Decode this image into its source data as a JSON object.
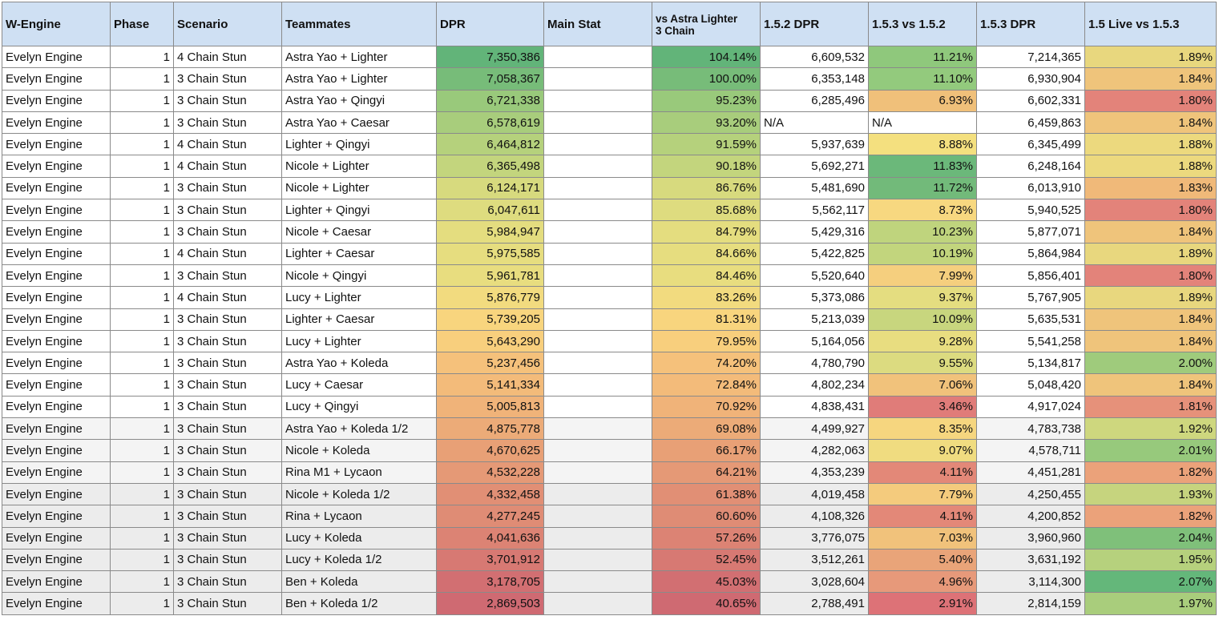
{
  "headers": {
    "wengine": "W-Engine",
    "phase": "Phase",
    "scenario": "Scenario",
    "teammates": "Teammates",
    "dpr": "DPR",
    "main_stat": "Main Stat",
    "vs_astra_line1": "vs Astra Lighter",
    "vs_astra_line2": "3 Chain",
    "dpr_152": "1.5.2 DPR",
    "v153_vs_152": "1.5.3 vs 1.5.2",
    "dpr_153": "1.5.3 DPR",
    "live_vs_153": "1.5 Live vs 1.5.3"
  },
  "rows": [
    {
      "wengine": "Evelyn  Engine",
      "phase": "1",
      "scenario": "4 Chain Stun",
      "teammates": "Astra Yao + Lighter",
      "dpr": "7,350,386",
      "main_stat": "",
      "vs_astra": "104.14%",
      "dpr_152": "6,609,532",
      "v153_vs_152": "11.21%",
      "dpr_153": "7,214,365",
      "live_vs_153": "1.89%",
      "c_dpr": "#62b479",
      "c_vs": "#62b479",
      "c_153": "#8fc87c",
      "c_live": "#e8d77e"
    },
    {
      "wengine": "Evelyn  Engine",
      "phase": "1",
      "scenario": "3 Chain Stun",
      "teammates": "Astra Yao + Lighter",
      "dpr": "7,058,367",
      "main_stat": "",
      "vs_astra": "100.00%",
      "dpr_152": "6,353,148",
      "v153_vs_152": "11.10%",
      "dpr_153": "6,930,904",
      "live_vs_153": "1.84%",
      "c_dpr": "#77bc79",
      "c_vs": "#77bc79",
      "c_153": "#93ca7d",
      "c_live": "#efc47b"
    },
    {
      "wengine": "Evelyn  Engine",
      "phase": "1",
      "scenario": "3 Chain Stun",
      "teammates": "Astra Yao + Qingyi",
      "dpr": "6,721,338",
      "main_stat": "",
      "vs_astra": "95.23%",
      "dpr_152": "6,285,496",
      "v153_vs_152": "6.93%",
      "dpr_153": "6,602,331",
      "live_vs_153": "1.80%",
      "c_dpr": "#99c97b",
      "c_vs": "#99c97b",
      "c_153": "#f0c07a",
      "c_live": "#e3837a"
    },
    {
      "wengine": "Evelyn  Engine",
      "phase": "1",
      "scenario": "3 Chain Stun",
      "teammates": "Astra Yao + Caesar",
      "dpr": "6,578,619",
      "main_stat": "",
      "vs_astra": "93.20%",
      "dpr_152": "N/A",
      "v153_vs_152": "N/A",
      "dpr_153": "6,459,863",
      "live_vs_153": "1.84%",
      "c_dpr": "#a8cd7c",
      "c_vs": "#a8cd7c",
      "c_153": "#ffffff",
      "c_live": "#efc47b"
    },
    {
      "wengine": "Evelyn  Engine",
      "phase": "1",
      "scenario": "4 Chain Stun",
      "teammates": "Lighter + Qingyi",
      "dpr": "6,464,812",
      "main_stat": "",
      "vs_astra": "91.59%",
      "dpr_152": "5,937,639",
      "v153_vs_152": "8.88%",
      "dpr_153": "6,345,499",
      "live_vs_153": "1.88%",
      "c_dpr": "#b5d17c",
      "c_vs": "#b5d17c",
      "c_153": "#f4e07f",
      "c_live": "#ecd97e"
    },
    {
      "wengine": "Evelyn  Engine",
      "phase": "1",
      "scenario": "4 Chain Stun",
      "teammates": "Nicole + Lighter",
      "dpr": "6,365,498",
      "main_stat": "",
      "vs_astra": "90.18%",
      "dpr_152": "5,692,271",
      "v153_vs_152": "11.83%",
      "dpr_153": "6,248,164",
      "live_vs_153": "1.88%",
      "c_dpr": "#c3d57d",
      "c_vs": "#c3d57d",
      "c_153": "#6bb87a",
      "c_live": "#ecd97e"
    },
    {
      "wengine": "Evelyn  Engine",
      "phase": "1",
      "scenario": "3 Chain Stun",
      "teammates": "Nicole + Lighter",
      "dpr": "6,124,171",
      "main_stat": "",
      "vs_astra": "86.76%",
      "dpr_152": "5,481,690",
      "v153_vs_152": "11.72%",
      "dpr_153": "6,013,910",
      "live_vs_153": "1.83%",
      "c_dpr": "#d7da7e",
      "c_vs": "#d7da7e",
      "c_153": "#72ba7a",
      "c_live": "#f0b979"
    },
    {
      "wengine": "Evelyn  Engine",
      "phase": "1",
      "scenario": "3 Chain Stun",
      "teammates": "Lighter + Qingyi",
      "dpr": "6,047,611",
      "main_stat": "",
      "vs_astra": "85.68%",
      "dpr_152": "5,562,117",
      "v153_vs_152": "8.73%",
      "dpr_153": "5,940,525",
      "live_vs_153": "1.80%",
      "c_dpr": "#dedc7f",
      "c_vs": "#dedc7f",
      "c_153": "#f7d880",
      "c_live": "#e3837a"
    },
    {
      "wengine": "Evelyn  Engine",
      "phase": "1",
      "scenario": "3 Chain Stun",
      "teammates": "Nicole + Caesar",
      "dpr": "5,984,947",
      "main_stat": "",
      "vs_astra": "84.79%",
      "dpr_152": "5,429,316",
      "v153_vs_152": "10.23%",
      "dpr_153": "5,877,071",
      "live_vs_153": "1.84%",
      "c_dpr": "#e4dd7f",
      "c_vs": "#e4dd7f",
      "c_153": "#bfd47d",
      "c_live": "#efc47b"
    },
    {
      "wengine": "Evelyn  Engine",
      "phase": "1",
      "scenario": "4 Chain Stun",
      "teammates": "Lighter + Caesar",
      "dpr": "5,975,585",
      "main_stat": "",
      "vs_astra": "84.66%",
      "dpr_152": "5,422,825",
      "v153_vs_152": "10.19%",
      "dpr_153": "5,864,984",
      "live_vs_153": "1.89%",
      "c_dpr": "#e6dd7f",
      "c_vs": "#e6dd7f",
      "c_153": "#c2d57d",
      "c_live": "#e8d77e"
    },
    {
      "wengine": "Evelyn  Engine",
      "phase": "1",
      "scenario": "3 Chain Stun",
      "teammates": "Nicole + Qingyi",
      "dpr": "5,961,781",
      "main_stat": "",
      "vs_astra": "84.46%",
      "dpr_152": "5,520,640",
      "v153_vs_152": "7.99%",
      "dpr_153": "5,856,401",
      "live_vs_153": "1.80%",
      "c_dpr": "#e8dd7f",
      "c_vs": "#e8dd7f",
      "c_153": "#f5cf7e",
      "c_live": "#e3837a"
    },
    {
      "wengine": "Evelyn  Engine",
      "phase": "1",
      "scenario": "4 Chain Stun",
      "teammates": "Lucy + Lighter",
      "dpr": "5,876,779",
      "main_stat": "",
      "vs_astra": "83.26%",
      "dpr_152": "5,373,086",
      "v153_vs_152": "9.37%",
      "dpr_153": "5,767,905",
      "live_vs_153": "1.89%",
      "c_dpr": "#f2db7f",
      "c_vs": "#f2db7f",
      "c_153": "#e4dd80",
      "c_live": "#e8d77e"
    },
    {
      "wengine": "Evelyn  Engine",
      "phase": "1",
      "scenario": "3 Chain Stun",
      "teammates": "Lighter + Caesar",
      "dpr": "5,739,205",
      "main_stat": "",
      "vs_astra": "81.31%",
      "dpr_152": "5,213,039",
      "v153_vs_152": "10.09%",
      "dpr_153": "5,635,531",
      "live_vs_153": "1.84%",
      "c_dpr": "#f8d57e",
      "c_vs": "#f8d57e",
      "c_153": "#c8d67e",
      "c_live": "#efc47b"
    },
    {
      "wengine": "Evelyn  Engine",
      "phase": "1",
      "scenario": "3 Chain Stun",
      "teammates": "Lucy + Lighter",
      "dpr": "5,643,290",
      "main_stat": "",
      "vs_astra": "79.95%",
      "dpr_152": "5,164,056",
      "v153_vs_152": "9.28%",
      "dpr_153": "5,541,258",
      "live_vs_153": "1.84%",
      "c_dpr": "#f8cf7d",
      "c_vs": "#f8cf7d",
      "c_153": "#e8dd80",
      "c_live": "#efc47b"
    },
    {
      "wengine": "Evelyn  Engine",
      "phase": "1",
      "scenario": "3 Chain Stun",
      "teammates": "Astra Yao + Koleda",
      "dpr": "5,237,456",
      "main_stat": "",
      "vs_astra": "74.20%",
      "dpr_152": "4,780,790",
      "v153_vs_152": "9.55%",
      "dpr_153": "5,134,817",
      "live_vs_153": "2.00%",
      "c_dpr": "#f5c17b",
      "c_vs": "#f5c17b",
      "c_153": "#dcdb80",
      "c_live": "#9fcb7c"
    },
    {
      "wengine": "Evelyn  Engine",
      "phase": "1",
      "scenario": "3 Chain Stun",
      "teammates": "Lucy + Caesar",
      "dpr": "5,141,334",
      "main_stat": "",
      "vs_astra": "72.84%",
      "dpr_152": "4,802,234",
      "v153_vs_152": "7.06%",
      "dpr_153": "5,048,420",
      "live_vs_153": "1.84%",
      "c_dpr": "#f3bb7a",
      "c_vs": "#f3bb7a",
      "c_153": "#f1c27b",
      "c_live": "#efc47b"
    },
    {
      "wengine": "Evelyn  Engine",
      "phase": "1",
      "scenario": "3 Chain Stun",
      "teammates": "Lucy + Qingyi",
      "dpr": "5,005,813",
      "main_stat": "",
      "vs_astra": "70.92%",
      "dpr_152": "4,838,431",
      "v153_vs_152": "3.46%",
      "dpr_153": "4,917,024",
      "live_vs_153": "1.81%",
      "c_dpr": "#f0b379",
      "c_vs": "#f0b379",
      "c_153": "#e07c79",
      "c_live": "#e6917a"
    },
    {
      "wengine": "Evelyn  Engine",
      "phase": "1",
      "scenario": "3 Chain Stun",
      "teammates": "Astra Yao + Koleda 1/2",
      "dpr": "4,875,778",
      "main_stat": "",
      "vs_astra": "69.08%",
      "dpr_152": "4,499,927",
      "v153_vs_152": "8.35%",
      "dpr_153": "4,783,738",
      "live_vs_153": "1.92%",
      "c_dpr": "#ecab78",
      "c_vs": "#ecab78",
      "c_153": "#f6d67f",
      "c_live": "#ced77e"
    },
    {
      "wengine": "Evelyn  Engine",
      "phase": "1",
      "scenario": "3 Chain Stun",
      "teammates": "Nicole + Koleda",
      "dpr": "4,670,625",
      "main_stat": "",
      "vs_astra": "66.17%",
      "dpr_152": "4,282,063",
      "v153_vs_152": "9.07%",
      "dpr_153": "4,578,711",
      "live_vs_153": "2.01%",
      "c_dpr": "#e8a076",
      "c_vs": "#e8a076",
      "c_153": "#f0dc80",
      "c_live": "#97c97c"
    },
    {
      "wengine": "Evelyn  Engine",
      "phase": "1",
      "scenario": "3 Chain Stun",
      "teammates": "Rina M1 + Lycaon",
      "dpr": "4,532,228",
      "main_stat": "",
      "vs_astra": "64.21%",
      "dpr_152": "4,353,239",
      "v153_vs_152": "4.11%",
      "dpr_153": "4,451,281",
      "live_vs_153": "1.82%",
      "c_dpr": "#e59976",
      "c_vs": "#e59976",
      "c_153": "#e38878",
      "c_live": "#eba27a"
    },
    {
      "wengine": "Evelyn  Engine",
      "phase": "1",
      "scenario": "3 Chain Stun",
      "teammates": "Nicole + Koleda 1/2",
      "dpr": "4,332,458",
      "main_stat": "",
      "vs_astra": "61.38%",
      "dpr_152": "4,019,458",
      "v153_vs_152": "7.79%",
      "dpr_153": "4,250,455",
      "live_vs_153": "1.93%",
      "c_dpr": "#e18f75",
      "c_vs": "#e18f75",
      "c_153": "#f4cb7d",
      "c_live": "#c6d47e"
    },
    {
      "wengine": "Evelyn  Engine",
      "phase": "1",
      "scenario": "3 Chain Stun",
      "teammates": "Rina + Lycaon",
      "dpr": "4,277,245",
      "main_stat": "",
      "vs_astra": "60.60%",
      "dpr_152": "4,108,326",
      "v153_vs_152": "4.11%",
      "dpr_153": "4,200,852",
      "live_vs_153": "1.82%",
      "c_dpr": "#df8c75",
      "c_vs": "#df8c75",
      "c_153": "#e38878",
      "c_live": "#eba27a"
    },
    {
      "wengine": "Evelyn  Engine",
      "phase": "1",
      "scenario": "3 Chain Stun",
      "teammates": "Lucy + Koleda",
      "dpr": "4,041,636",
      "main_stat": "",
      "vs_astra": "57.26%",
      "dpr_152": "3,776,075",
      "v153_vs_152": "7.03%",
      "dpr_153": "3,960,960",
      "live_vs_153": "2.04%",
      "c_dpr": "#dc8374",
      "c_vs": "#dc8374",
      "c_153": "#f1c27b",
      "c_live": "#7fc07a"
    },
    {
      "wengine": "Evelyn  Engine",
      "phase": "1",
      "scenario": "3 Chain Stun",
      "teammates": "Lucy + Koleda 1/2",
      "dpr": "3,701,912",
      "main_stat": "",
      "vs_astra": "52.45%",
      "dpr_152": "3,512,261",
      "v153_vs_152": "5.40%",
      "dpr_153": "3,631,192",
      "live_vs_153": "1.95%",
      "c_dpr": "#d77973",
      "c_vs": "#d77973",
      "c_153": "#e9a479",
      "c_live": "#b6d17d"
    },
    {
      "wengine": "Evelyn  Engine",
      "phase": "1",
      "scenario": "3 Chain Stun",
      "teammates": "Ben + Koleda",
      "dpr": "3,178,705",
      "main_stat": "",
      "vs_astra": "45.03%",
      "dpr_152": "3,028,604",
      "v153_vs_152": "4.96%",
      "dpr_153": "3,114,300",
      "live_vs_153": "2.07%",
      "c_dpr": "#d26f72",
      "c_vs": "#d26f72",
      "c_153": "#e7997a",
      "c_live": "#64b77a"
    },
    {
      "wengine": "Evelyn  Engine",
      "phase": "1",
      "scenario": "3 Chain Stun",
      "teammates": "Ben + Koleda 1/2",
      "dpr": "2,869,503",
      "main_stat": "",
      "vs_astra": "40.65%",
      "dpr_152": "2,788,491",
      "v153_vs_152": "2.91%",
      "dpr_153": "2,814,159",
      "live_vs_153": "1.97%",
      "c_dpr": "#cf6a72",
      "c_vs": "#cf6a72",
      "c_153": "#dd7277",
      "c_live": "#a9cd7c"
    }
  ]
}
